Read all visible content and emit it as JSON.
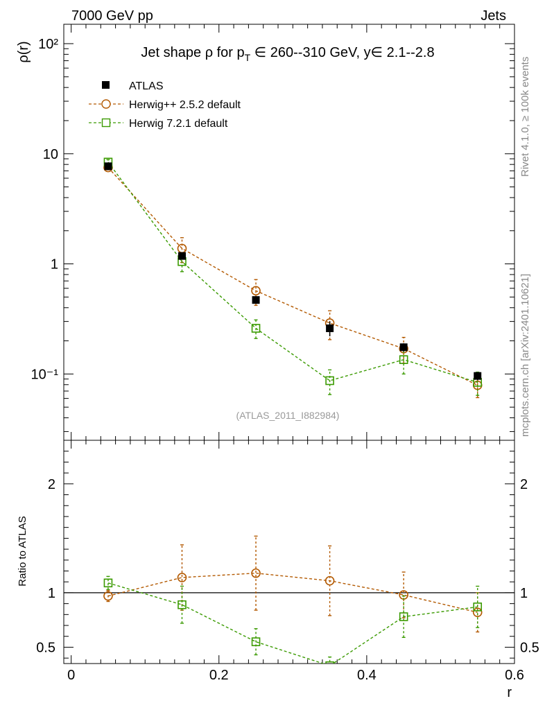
{
  "header": {
    "energy_label": "7000 GeV pp",
    "category_label": "Jets"
  },
  "side_labels": {
    "rivet": "Rivet 4.1.0, ≥ 100k events",
    "mcplots": "mcplots.cern.ch [arXiv:2401.10621]"
  },
  "chart_data": [
    {
      "type": "line",
      "title": "Jet shape ρ for p_T ∈ 260--310 GeV, y∈ 2.1--2.8",
      "title_parts": {
        "prefix": "Jet shape ρ for p",
        "subscript": "T",
        "suffix": " ∈ 260--310 GeV, y∈ 2.1--2.8"
      },
      "xlabel": "",
      "ylabel": "ρ(r)",
      "yscale": "log",
      "xlim": [
        -0.01,
        0.6
      ],
      "ylim": [
        0.025,
        150
      ],
      "y_tick_labels": [
        "10⁻¹",
        "1",
        "10",
        "10²"
      ],
      "x_tick_labels": [
        "0",
        "0.2",
        "0.4",
        "0.6"
      ],
      "watermark": "(ATLAS_2011_I882984)",
      "series": [
        {
          "name": "ATLAS",
          "color": "#000000",
          "marker": "filled-square",
          "x": [
            0.05,
            0.15,
            0.25,
            0.35,
            0.45,
            0.55
          ],
          "y": [
            7.7,
            1.18,
            0.47,
            0.26,
            0.175,
            0.096
          ],
          "err": [
            0.25,
            0.06,
            0.03,
            0.04,
            0.015,
            0.008
          ]
        },
        {
          "name": "Herwig++ 2.5.2 default",
          "color": "#b35900",
          "marker": "open-circle",
          "linestyle": "dashed",
          "x": [
            0.05,
            0.15,
            0.25,
            0.35,
            0.45,
            0.55
          ],
          "y": [
            7.5,
            1.38,
            0.57,
            0.29,
            0.17,
            0.079
          ],
          "err": [
            0.35,
            0.35,
            0.15,
            0.085,
            0.045,
            0.018
          ]
        },
        {
          "name": "Herwig 7.2.1 default",
          "color": "#3a9a00",
          "marker": "open-square",
          "linestyle": "dashed",
          "x": [
            0.05,
            0.15,
            0.25,
            0.35,
            0.45,
            0.55
          ],
          "y": [
            8.4,
            1.05,
            0.26,
            0.087,
            0.135,
            0.084
          ],
          "err": [
            0.45,
            0.2,
            0.05,
            0.022,
            0.035,
            0.02
          ]
        }
      ]
    },
    {
      "type": "line",
      "title": "",
      "xlabel": "r",
      "ylabel": "Ratio to ATLAS",
      "xlim": [
        -0.01,
        0.6
      ],
      "ylim": [
        0.35,
        2.4
      ],
      "y_tick_labels": [
        "0.5",
        "1",
        "2"
      ],
      "x_tick_labels": [
        "0",
        "0.2",
        "0.4",
        "0.6"
      ],
      "reference_line": 1,
      "series": [
        {
          "name": "Herwig++ 2.5.2 default",
          "color": "#b35900",
          "marker": "open-circle",
          "x": [
            0.05,
            0.15,
            0.25,
            0.35,
            0.45,
            0.55
          ],
          "y": [
            0.97,
            1.14,
            1.18,
            1.11,
            0.98,
            0.82
          ],
          "err": [
            0.05,
            0.3,
            0.34,
            0.32,
            0.21,
            0.18
          ]
        },
        {
          "name": "Herwig 7.2.1 default",
          "color": "#3a9a00",
          "marker": "open-square",
          "x": [
            0.05,
            0.15,
            0.25,
            0.35,
            0.45,
            0.55
          ],
          "y": [
            1.09,
            0.89,
            0.55,
            0.33,
            0.78,
            0.87
          ],
          "err": [
            0.06,
            0.17,
            0.12,
            0.08,
            0.19,
            0.19
          ]
        }
      ]
    }
  ]
}
